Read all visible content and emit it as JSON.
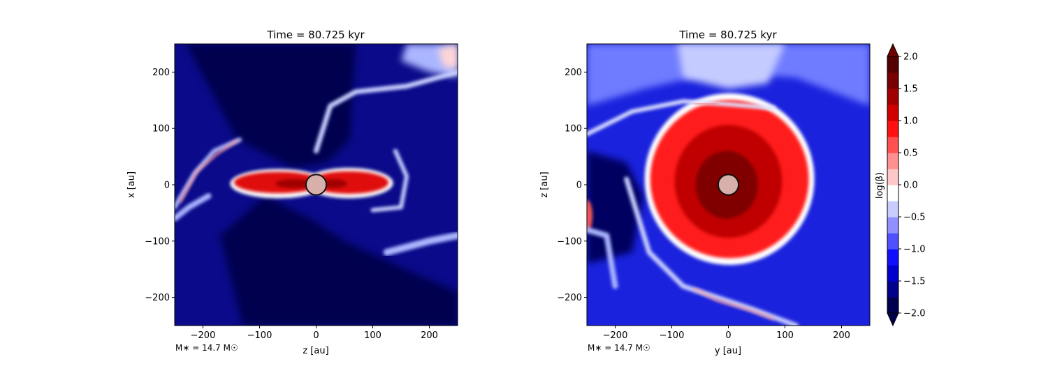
{
  "chart_data": [
    {
      "type": "heatmap",
      "title": "Time = 80.725 kyr",
      "xlabel": "z [au]",
      "ylabel": "x [au]",
      "xlim": [
        -250,
        250
      ],
      "ylim": [
        -250,
        250
      ],
      "xticks": [
        -200,
        -100,
        0,
        100,
        200
      ],
      "yticks": [
        -200,
        -100,
        0,
        100,
        200
      ],
      "xtick_labels": [
        "−200",
        "−100",
        "0",
        "100",
        "200"
      ],
      "ytick_labels": [
        "−200",
        "−100",
        "0",
        "100",
        "200"
      ],
      "annotation": "M∗ = 14.7 M☉",
      "sink": {
        "x": 0,
        "y": 0,
        "radius": 18
      },
      "background": "#0a0a8a",
      "features": [
        {
          "kind": "dark_region",
          "color": "#000050",
          "points": [
            [
              -160,
              250
            ],
            [
              70,
              250
            ],
            [
              60,
              80
            ],
            [
              20,
              40
            ],
            [
              -40,
              30
            ],
            [
              -140,
              80
            ],
            [
              -230,
              250
            ]
          ]
        },
        {
          "kind": "dark_region",
          "color": "#000050",
          "points": [
            [
              -90,
              -20
            ],
            [
              -10,
              -60
            ],
            [
              50,
              -100
            ],
            [
              180,
              -160
            ],
            [
              250,
              -190
            ],
            [
              250,
              -250
            ],
            [
              -130,
              -250
            ],
            [
              -170,
              -90
            ]
          ]
        },
        {
          "kind": "pale_region",
          "color": "#aab6ff",
          "points": [
            [
              160,
              250
            ],
            [
              250,
              250
            ],
            [
              250,
              190
            ],
            [
              200,
              200
            ],
            [
              150,
              220
            ]
          ]
        },
        {
          "kind": "pale_region",
          "color": "#ffd5d5",
          "points": [
            [
              215,
              240
            ],
            [
              250,
              250
            ],
            [
              250,
              205
            ],
            [
              225,
              210
            ]
          ]
        },
        {
          "kind": "blob",
          "color": "#ffffff",
          "cx": -67,
          "cy": 2,
          "rx": 85,
          "ry": 26
        },
        {
          "kind": "blob",
          "color": "#ffffff",
          "cx": 58,
          "cy": 3,
          "rx": 78,
          "ry": 27
        },
        {
          "kind": "blob",
          "color": "#e01010",
          "cx": -67,
          "cy": 4,
          "rx": 78,
          "ry": 19
        },
        {
          "kind": "blob",
          "color": "#e01010",
          "cx": 58,
          "cy": 4,
          "rx": 70,
          "ry": 20
        },
        {
          "kind": "blob",
          "color": "#a00000",
          "cx": -40,
          "cy": 2,
          "rx": 32,
          "ry": 8
        },
        {
          "kind": "blob",
          "color": "#a00000",
          "cx": 30,
          "cy": 2,
          "rx": 25,
          "ry": 8
        }
      ],
      "streams": [
        {
          "color": "#b0bbff",
          "width": 6,
          "points": [
            [
              -250,
              -40
            ],
            [
              -215,
              20
            ],
            [
              -180,
              60
            ],
            [
              -135,
              80
            ]
          ]
        },
        {
          "color": "#ff9a9a",
          "width": 3,
          "points": [
            [
              -240,
              -30
            ],
            [
              -210,
              25
            ],
            [
              -175,
              55
            ],
            [
              -140,
              78
            ]
          ]
        },
        {
          "color": "#c9d0ff",
          "width": 7,
          "points": [
            [
              0,
              60
            ],
            [
              25,
              140
            ],
            [
              70,
              165
            ],
            [
              160,
              175
            ],
            [
              250,
              200
            ]
          ]
        },
        {
          "color": "#c9d0ff",
          "width": 6,
          "points": [
            [
              100,
              -45
            ],
            [
              150,
              -40
            ],
            [
              160,
              15
            ],
            [
              140,
              60
            ]
          ]
        },
        {
          "color": "#aab6ff",
          "width": 10,
          "points": [
            [
              125,
              -120
            ],
            [
              200,
              -100
            ],
            [
              250,
              -90
            ]
          ]
        },
        {
          "color": "#aab6ff",
          "width": 8,
          "points": [
            [
              -250,
              -60
            ],
            [
              -225,
              -40
            ],
            [
              -190,
              -20
            ]
          ]
        }
      ]
    },
    {
      "type": "heatmap",
      "title": "Time = 80.725 kyr",
      "xlabel": "y [au]",
      "ylabel": "z [au]",
      "xlim": [
        -250,
        250
      ],
      "ylim": [
        -250,
        250
      ],
      "xticks": [
        -200,
        -100,
        0,
        100,
        200
      ],
      "yticks": [
        -200,
        -100,
        0,
        100,
        200
      ],
      "xtick_labels": [
        "−200",
        "−100",
        "0",
        "100",
        "200"
      ],
      "ytick_labels": [
        "−200",
        "−100",
        "0",
        "100",
        "200"
      ],
      "annotation": "M∗ = 14.7 M☉",
      "sink": {
        "x": 0,
        "y": 0,
        "radius": 18
      },
      "background": "#1a22dd",
      "features": [
        {
          "kind": "pale_region",
          "color": "#6f7cff",
          "points": [
            [
              -250,
              250
            ],
            [
              250,
              250
            ],
            [
              250,
              140
            ],
            [
              120,
              190
            ],
            [
              -20,
              200
            ],
            [
              -150,
              170
            ],
            [
              -250,
              140
            ]
          ]
        },
        {
          "kind": "pale_region",
          "color": "#c4cbff",
          "points": [
            [
              -90,
              250
            ],
            [
              100,
              250
            ],
            [
              70,
              180
            ],
            [
              0,
              170
            ],
            [
              -80,
              190
            ]
          ]
        },
        {
          "kind": "dark_region",
          "color": "#000060",
          "points": [
            [
              -250,
              60
            ],
            [
              -180,
              40
            ],
            [
              -150,
              -20
            ],
            [
              -170,
              -120
            ],
            [
              -250,
              -140
            ]
          ]
        },
        {
          "kind": "blob",
          "color": "#ffffff",
          "cx": 2,
          "cy": 10,
          "rx": 150,
          "ry": 152
        },
        {
          "kind": "blob",
          "color": "#ff1a1a",
          "cx": 2,
          "cy": 10,
          "rx": 140,
          "ry": 140
        },
        {
          "kind": "blob",
          "color": "#c00000",
          "cx": 0,
          "cy": 6,
          "rx": 95,
          "ry": 100
        },
        {
          "kind": "blob",
          "color": "#800000",
          "cx": -3,
          "cy": 0,
          "rx": 55,
          "ry": 60
        },
        {
          "kind": "blob",
          "color": "#f25656",
          "cx": -250,
          "cy": -55,
          "rx": 10,
          "ry": 28
        }
      ],
      "streams": [
        {
          "color": "#dfe3ff",
          "width": 6,
          "points": [
            [
              -250,
              90
            ],
            [
              -170,
              130
            ],
            [
              -80,
              148
            ],
            [
              0,
              143
            ],
            [
              80,
              136
            ]
          ]
        },
        {
          "color": "#ff6666",
          "width": 3,
          "points": [
            [
              -60,
              144
            ],
            [
              -20,
              143
            ]
          ]
        },
        {
          "color": "#c9d0ff",
          "width": 7,
          "points": [
            [
              -180,
              10
            ],
            [
              -140,
              -120
            ],
            [
              -80,
              -180
            ],
            [
              40,
              -220
            ],
            [
              120,
              -250
            ]
          ]
        },
        {
          "color": "#ff9a9a",
          "width": 3,
          "points": [
            [
              -60,
              -185
            ],
            [
              -20,
              -205
            ],
            [
              30,
              -220
            ],
            [
              80,
              -238
            ]
          ]
        },
        {
          "color": "#aab6ff",
          "width": 8,
          "points": [
            [
              -250,
              -80
            ],
            [
              -215,
              -90
            ],
            [
              -200,
              -180
            ]
          ]
        }
      ]
    }
  ],
  "colorbar": {
    "label": "log(β)",
    "min": -2.0,
    "max": 2.0,
    "tick_values": [
      -2.0,
      -1.5,
      -1.0,
      -0.5,
      0.0,
      0.5,
      1.0,
      1.5,
      2.0
    ],
    "tick_labels": [
      "−2.0",
      "−1.5",
      "−1.0",
      "−0.5",
      "0.0",
      "0.5",
      "1.0",
      "1.5",
      "2.0"
    ],
    "colors": [
      "#00004c",
      "#00008a",
      "#0000cc",
      "#1010ff",
      "#5050ff",
      "#9090ff",
      "#c8ccff",
      "#ffffff",
      "#ffc8c8",
      "#ff9090",
      "#ff5050",
      "#ff1010",
      "#d00000",
      "#a00000",
      "#780000",
      "#550000"
    ],
    "extend_low_color": "#00004c",
    "extend_high_color": "#6e0000"
  }
}
